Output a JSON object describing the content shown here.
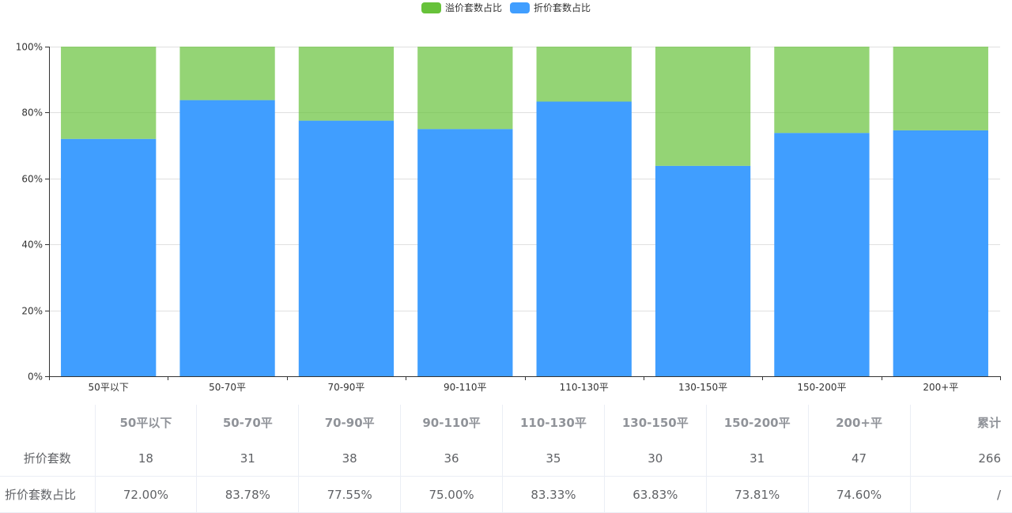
{
  "chart_data": {
    "type": "bar",
    "stacked": true,
    "categories": [
      "50平以下",
      "50-70平",
      "70-90平",
      "90-110平",
      "110-130平",
      "130-150平",
      "150-200平",
      "200+平"
    ],
    "series": [
      {
        "name": "溢价套数占比",
        "color": "#67c23a",
        "values": [
          28.0,
          16.22,
          22.45,
          25.0,
          16.67,
          36.17,
          26.19,
          25.4
        ]
      },
      {
        "name": "折价套数占比",
        "color": "#409eff",
        "values": [
          72.0,
          83.78,
          77.55,
          75.0,
          83.33,
          63.83,
          73.81,
          74.6
        ]
      }
    ],
    "y_ticks": [
      "0%",
      "20%",
      "40%",
      "60%",
      "80%",
      "100%"
    ],
    "ylim": [
      0,
      100
    ],
    "grid": true,
    "legend": "top-center"
  },
  "table": {
    "headers": [
      "",
      "50平以下",
      "50-70平",
      "70-90平",
      "90-110平",
      "110-130平",
      "130-150平",
      "150-200平",
      "200+平",
      "累计"
    ],
    "rows": [
      {
        "label": "折价套数",
        "cells": [
          "18",
          "31",
          "38",
          "36",
          "35",
          "30",
          "31",
          "47",
          "266"
        ]
      },
      {
        "label": "折价套数占比",
        "cells": [
          "72.00%",
          "83.78%",
          "77.55%",
          "75.00%",
          "83.33%",
          "63.83%",
          "73.81%",
          "74.60%",
          "/"
        ]
      }
    ]
  }
}
